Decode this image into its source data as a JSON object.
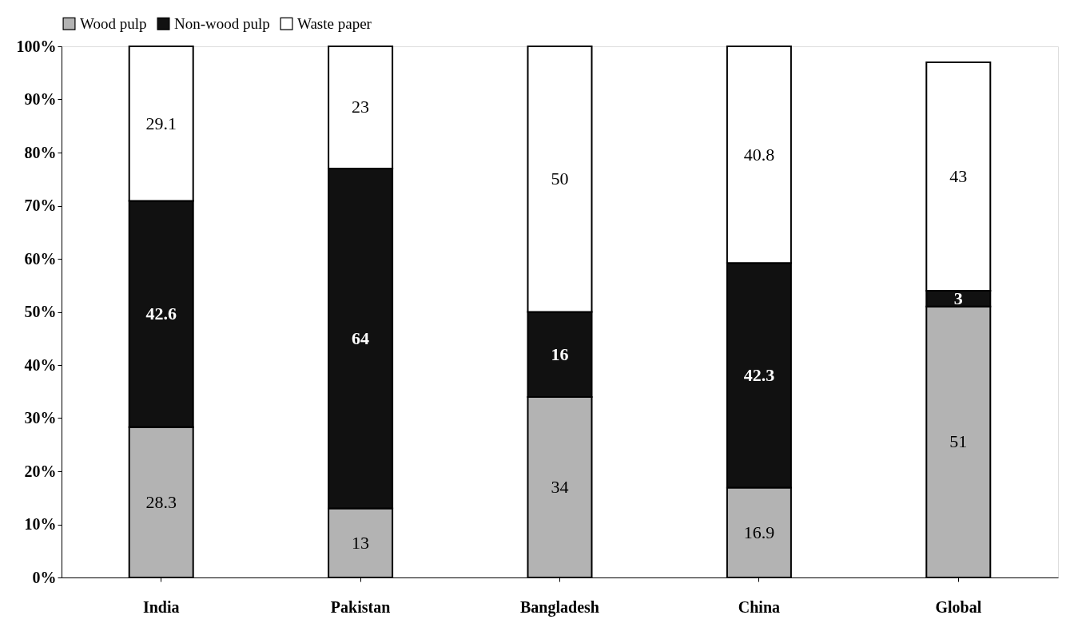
{
  "chart_data": {
    "type": "bar",
    "stacked": true,
    "categories": [
      "India",
      "Pakistan",
      "Bangladesh",
      "China",
      "Global"
    ],
    "series": [
      {
        "name": "Wood pulp",
        "color": "#b3b3b3",
        "values": [
          28.3,
          13,
          34,
          16.9,
          51
        ]
      },
      {
        "name": "Non-wood pulp",
        "color": "#111111",
        "values": [
          42.6,
          64,
          16,
          42.3,
          3
        ]
      },
      {
        "name": "Waste paper",
        "color": "#ffffff",
        "values": [
          29.1,
          23,
          50,
          40.8,
          43
        ]
      }
    ],
    "ylim": [
      0,
      100
    ],
    "yticks": [
      {
        "value": 0,
        "label": "0%"
      },
      {
        "value": 10,
        "label": "10%"
      },
      {
        "value": 20,
        "label": "20%"
      },
      {
        "value": 30,
        "label": "30%"
      },
      {
        "value": 40,
        "label": "40%"
      },
      {
        "value": 50,
        "label": "50%"
      },
      {
        "value": 60,
        "label": "60%"
      },
      {
        "value": 70,
        "label": "70%"
      },
      {
        "value": 80,
        "label": "80%"
      },
      {
        "value": 90,
        "label": "90%"
      },
      {
        "value": 100,
        "label": "100%"
      }
    ],
    "data_labels": true,
    "legend": "top",
    "grid": false
  }
}
